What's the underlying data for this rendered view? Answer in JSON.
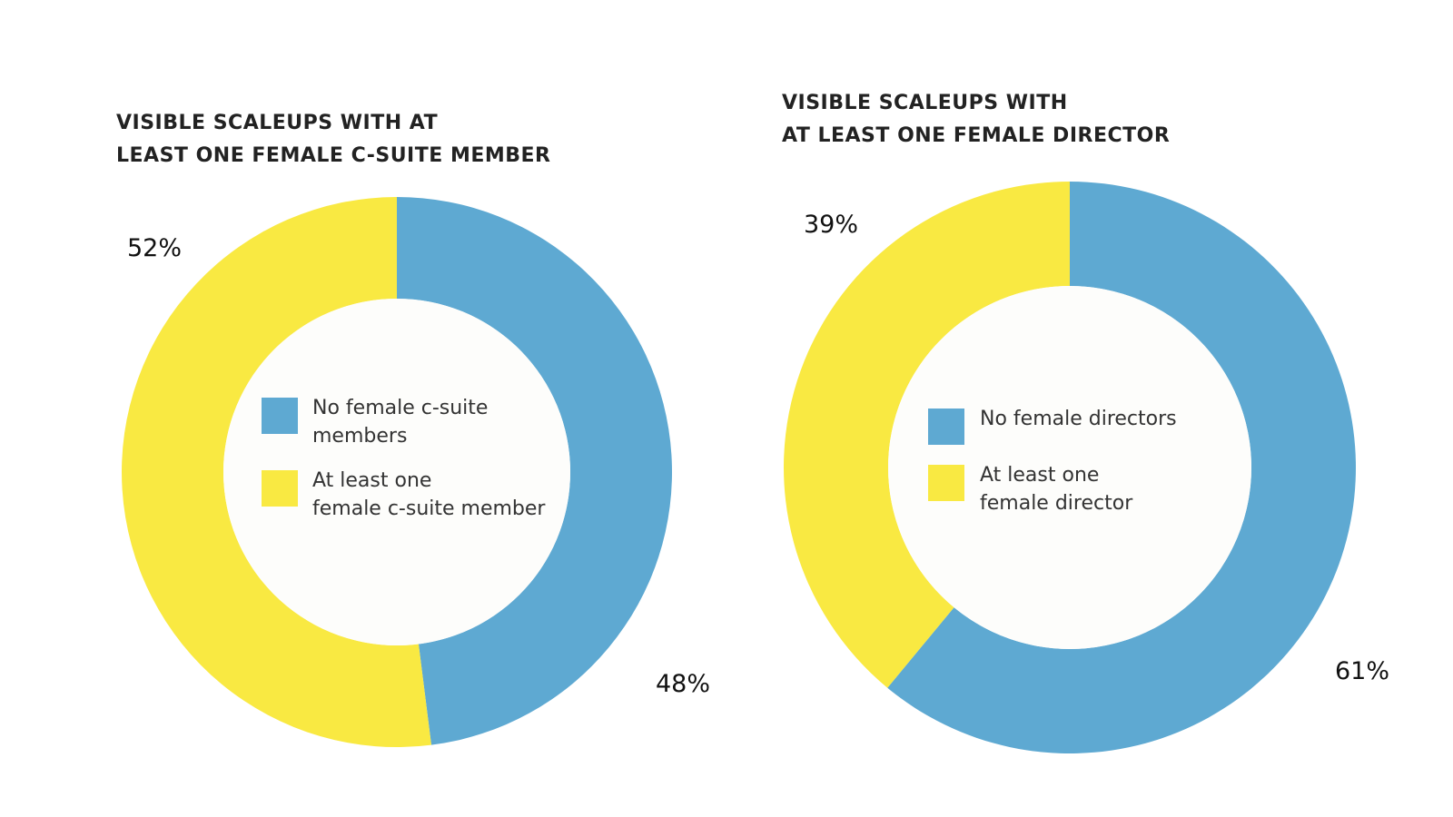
{
  "chart_data": [
    {
      "type": "pie",
      "title": "VISIBLE SCALEUPS WITH AT\nLEAST ONE FEMALE C-SUITE MEMBER",
      "categories": [
        "No female c-suite\nmembers",
        "At least one\nfemale c-suite member"
      ],
      "values": [
        48,
        52
      ],
      "value_labels": [
        "48%",
        "52%"
      ],
      "colors": [
        "#5ea9d2",
        "#f9e942"
      ]
    },
    {
      "type": "pie",
      "title": "VISIBLE SCALEUPS WITH\nAT LEAST ONE FEMALE DIRECTOR",
      "categories": [
        "No female directors",
        "At least one\nfemale director"
      ],
      "values": [
        61,
        39
      ],
      "value_labels": [
        "61%",
        "39%"
      ],
      "colors": [
        "#5ea9d2",
        "#f9e942"
      ]
    }
  ]
}
